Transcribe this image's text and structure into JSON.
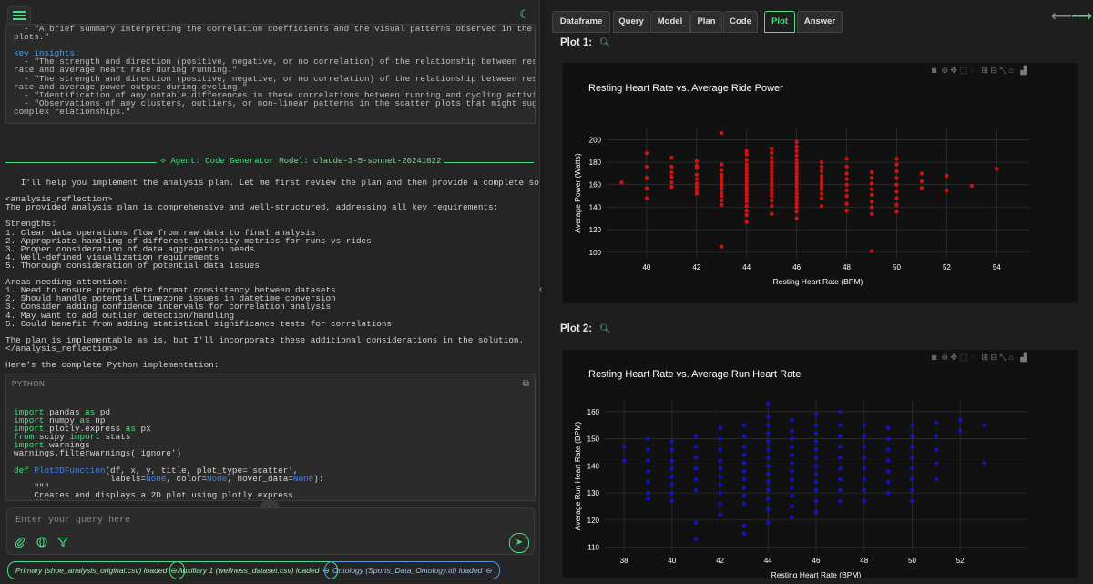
{
  "app": {
    "menu_icon": "hamburger-menu-icon",
    "theme_icon": "moon-icon"
  },
  "summary": {
    "lines": [
      "  - \"A brief summary interpreting the correlation coefficients and the visual patterns observed in the scatter",
      "plots.\"",
      "",
      "key_insights:",
      "  - \"The strength and direction (positive, negative, or no correlation) of the relationship between resting heart",
      "rate and average heart rate during running.\"",
      "  - \"The strength and direction (positive, negative, or no correlation) of the relationship between resting heart",
      "rate and average power output during cycling.\"",
      "  - \"Identification of any notable differences in these correlations between running and cycling activities.\"",
      "  - \"Observations of any clusters, outliers, or non-linear patterns in the scatter plots that might suggest more",
      "complex relationships.\""
    ]
  },
  "agent": {
    "label": "⟡ Agent: Code Generator",
    "model": "Model: claude-3-5-sonnet-20241022"
  },
  "message": {
    "lines": [
      "   I'll help you implement the analysis plan. Let me first review the plan and then provide a complete solution.",
      "",
      "<analysis_reflection>",
      "The provided analysis plan is comprehensive and well-structured, addressing all key requirements:",
      "",
      "Strengths:",
      "1. Clear data operations flow from raw data to final analysis",
      "2. Appropriate handling of different intensity metrics for runs vs rides",
      "3. Proper consideration of data aggregation needs",
      "4. Well-defined visualization requirements",
      "5. Thorough consideration of potential data issues",
      "",
      "Areas needing attention:",
      "1. Need to ensure proper date format consistency between datasets",
      "2. Should handle potential timezone issues in datetime conversion",
      "3. Consider adding confidence intervals for correlation analysis",
      "4. May want to add outlier detection/handling",
      "5. Could benefit from adding statistical significance tests for correlations",
      "",
      "The plan is implementable as is, but I'll incorporate these additional considerations in the solution.",
      "</analysis_reflection>",
      "",
      "Here's the complete Python implementation:"
    ]
  },
  "code": {
    "language": "PYTHON",
    "copy_icon": "copy-icon",
    "lines": [
      [
        [
          "kw",
          "import"
        ],
        [
          "t",
          " pandas "
        ],
        [
          "kw",
          "as"
        ],
        [
          "t",
          " pd"
        ]
      ],
      [
        [
          "kw",
          "import"
        ],
        [
          "t",
          " numpy "
        ],
        [
          "kw",
          "as"
        ],
        [
          "t",
          " np"
        ]
      ],
      [
        [
          "kw",
          "import"
        ],
        [
          "t",
          " plotly.express "
        ],
        [
          "kw",
          "as"
        ],
        [
          "t",
          " px"
        ]
      ],
      [
        [
          "kw",
          "from"
        ],
        [
          "t",
          " scipy "
        ],
        [
          "kw",
          "import"
        ],
        [
          "t",
          " stats"
        ]
      ],
      [
        [
          "kw",
          "import"
        ],
        [
          "t",
          " warnings"
        ]
      ],
      [
        [
          "t",
          "warnings.filterwarnings('ignore')"
        ]
      ],
      [
        [
          "t",
          ""
        ]
      ],
      [
        [
          "kw",
          "def"
        ],
        [
          "t",
          " "
        ],
        [
          "fn",
          "Plot2DFunction"
        ],
        [
          "t",
          "(df, x, y, title, plot_type='scatter',"
        ]
      ],
      [
        [
          "t",
          "                   labels="
        ],
        [
          "nn",
          "None"
        ],
        [
          "t",
          ", color="
        ],
        [
          "nn",
          "None"
        ],
        [
          "t",
          ", hover_data="
        ],
        [
          "nn",
          "None"
        ],
        [
          "t",
          "):"
        ]
      ],
      [
        [
          "t",
          "    \"\"\""
        ]
      ],
      [
        [
          "t",
          "    Creates and displays a 2D plot using plotly express"
        ]
      ],
      [
        [
          "t",
          "    \"\"\""
        ]
      ]
    ]
  },
  "query": {
    "placeholder": "Enter your query here",
    "attach_icon": "paperclip-icon",
    "globe_icon": "globe-icon",
    "filter_icon": "filter-icon",
    "send_icon": "send-icon",
    "scroll_icon": "arrow-down-icon"
  },
  "datasets": [
    {
      "label": "Primary (shoe_analysis_original.csv) loaded",
      "color": "#4ade80"
    },
    {
      "label": "Auxiliary 1 (wellness_dataset.csv) loaded",
      "color": "#4ade80"
    },
    {
      "label": "Ontology (Sports_Data_Ontology.ttl) loaded",
      "color": "#5b9bd5"
    }
  ],
  "tabs": [
    "Dataframe",
    "Query",
    "Model",
    "Plan",
    "Code",
    "Plot",
    "Answer"
  ],
  "active_tab": "Plot",
  "nav": {
    "back": "⟵",
    "forward": "⟶"
  },
  "plots": [
    {
      "label": "Plot 1:",
      "zoom_icon": "magnifier-icon"
    },
    {
      "label": "Plot 2:",
      "zoom_icon": "magnifier-icon"
    }
  ],
  "modebar_icons": [
    "camera-icon",
    "zoom-icon",
    "pan-icon",
    "box-select-icon",
    "lasso-icon",
    "zoom-in-icon",
    "zoom-out-icon",
    "autoscale-icon",
    "home-icon",
    "plotly-logo-icon"
  ],
  "chart_data": [
    {
      "type": "scatter",
      "title": "Resting Heart Rate vs. Average Ride Power",
      "xlabel": "Resting Heart Rate (BPM)",
      "ylabel": "Average Power (Watts)",
      "xlim": [
        38.4,
        55.3
      ],
      "ylim": [
        95,
        210
      ],
      "xticks": [
        40,
        42,
        44,
        46,
        48,
        50,
        52,
        54
      ],
      "yticks": [
        100,
        120,
        140,
        160,
        180,
        200
      ],
      "color": "#dd1111",
      "grid": true,
      "points": [
        [
          39,
          162
        ],
        [
          40,
          188
        ],
        [
          40,
          176
        ],
        [
          40,
          166
        ],
        [
          40,
          157
        ],
        [
          40,
          148
        ],
        [
          41,
          184
        ],
        [
          41,
          176
        ],
        [
          41,
          171
        ],
        [
          41,
          167
        ],
        [
          41,
          162
        ],
        [
          41,
          158
        ],
        [
          42,
          181
        ],
        [
          42,
          177
        ],
        [
          42,
          175
        ],
        [
          42,
          169
        ],
        [
          42,
          165
        ],
        [
          42,
          161
        ],
        [
          42,
          158
        ],
        [
          42,
          155
        ],
        [
          42,
          152
        ],
        [
          43,
          206
        ],
        [
          43,
          178
        ],
        [
          43,
          173
        ],
        [
          43,
          169
        ],
        [
          43,
          166
        ],
        [
          43,
          163
        ],
        [
          43,
          160
        ],
        [
          43,
          157
        ],
        [
          43,
          153
        ],
        [
          43,
          150
        ],
        [
          43,
          146
        ],
        [
          43,
          142
        ],
        [
          43,
          105
        ],
        [
          44,
          190
        ],
        [
          44,
          187
        ],
        [
          44,
          182
        ],
        [
          44,
          178
        ],
        [
          44,
          175
        ],
        [
          44,
          172
        ],
        [
          44,
          169
        ],
        [
          44,
          166
        ],
        [
          44,
          163
        ],
        [
          44,
          160
        ],
        [
          44,
          157
        ],
        [
          44,
          154
        ],
        [
          44,
          151
        ],
        [
          44,
          148
        ],
        [
          44,
          145
        ],
        [
          44,
          141
        ],
        [
          44,
          137
        ],
        [
          44,
          133
        ],
        [
          44,
          127
        ],
        [
          45,
          192
        ],
        [
          45,
          188
        ],
        [
          45,
          184
        ],
        [
          45,
          180
        ],
        [
          45,
          177
        ],
        [
          45,
          174
        ],
        [
          45,
          171
        ],
        [
          45,
          168
        ],
        [
          45,
          165
        ],
        [
          45,
          162
        ],
        [
          45,
          159
        ],
        [
          45,
          156
        ],
        [
          45,
          153
        ],
        [
          45,
          150
        ],
        [
          45,
          146
        ],
        [
          45,
          141
        ],
        [
          45,
          134
        ],
        [
          46,
          198
        ],
        [
          46,
          194
        ],
        [
          46,
          190
        ],
        [
          46,
          186
        ],
        [
          46,
          182
        ],
        [
          46,
          179
        ],
        [
          46,
          176
        ],
        [
          46,
          173
        ],
        [
          46,
          170
        ],
        [
          46,
          167
        ],
        [
          46,
          164
        ],
        [
          46,
          161
        ],
        [
          46,
          158
        ],
        [
          46,
          155
        ],
        [
          46,
          152
        ],
        [
          46,
          149
        ],
        [
          46,
          146
        ],
        [
          46,
          143
        ],
        [
          46,
          140
        ],
        [
          46,
          136
        ],
        [
          46,
          130
        ],
        [
          47,
          180
        ],
        [
          47,
          176
        ],
        [
          47,
          172
        ],
        [
          47,
          168
        ],
        [
          47,
          165
        ],
        [
          47,
          162
        ],
        [
          47,
          159
        ],
        [
          47,
          156
        ],
        [
          47,
          152
        ],
        [
          47,
          148
        ],
        [
          47,
          141
        ],
        [
          48,
          183
        ],
        [
          48,
          176
        ],
        [
          48,
          170
        ],
        [
          48,
          165
        ],
        [
          48,
          160
        ],
        [
          48,
          155
        ],
        [
          48,
          150
        ],
        [
          48,
          143
        ],
        [
          48,
          137
        ],
        [
          49,
          171
        ],
        [
          49,
          166
        ],
        [
          49,
          161
        ],
        [
          49,
          156
        ],
        [
          49,
          151
        ],
        [
          49,
          145
        ],
        [
          49,
          140
        ],
        [
          49,
          134
        ],
        [
          49,
          101
        ],
        [
          50,
          183
        ],
        [
          50,
          178
        ],
        [
          50,
          172
        ],
        [
          50,
          166
        ],
        [
          50,
          160
        ],
        [
          50,
          154
        ],
        [
          50,
          148
        ],
        [
          50,
          142
        ],
        [
          50,
          136
        ],
        [
          51,
          170
        ],
        [
          51,
          163
        ],
        [
          51,
          157
        ],
        [
          52,
          168
        ],
        [
          52,
          155
        ],
        [
          53,
          159
        ],
        [
          54,
          174
        ]
      ]
    },
    {
      "type": "scatter",
      "title": "Resting Heart Rate vs. Average Run Heart Rate",
      "xlabel": "Resting Heart Rate (BPM)",
      "ylabel": "Average Run Heart Rate (BPM)",
      "xlim": [
        37.2,
        54.8
      ],
      "ylim": [
        108.5,
        164
      ],
      "xticks": [
        38,
        40,
        42,
        44,
        46,
        48,
        50,
        52
      ],
      "yticks": [
        110,
        120,
        130,
        140,
        150,
        160
      ],
      "color": "#1414d8",
      "grid": true,
      "points": [
        [
          38,
          147
        ],
        [
          38,
          142
        ],
        [
          39,
          150
        ],
        [
          39,
          146
        ],
        [
          39,
          142
        ],
        [
          39,
          138
        ],
        [
          39,
          134
        ],
        [
          39,
          130
        ],
        [
          39,
          128
        ],
        [
          40,
          149
        ],
        [
          40,
          146
        ],
        [
          40,
          142
        ],
        [
          40,
          139
        ],
        [
          40,
          136
        ],
        [
          40,
          133
        ],
        [
          40,
          130
        ],
        [
          40,
          127
        ],
        [
          41,
          151
        ],
        [
          41,
          147
        ],
        [
          41,
          143
        ],
        [
          41,
          139
        ],
        [
          41,
          135
        ],
        [
          41,
          131
        ],
        [
          41,
          119
        ],
        [
          41,
          113
        ],
        [
          42,
          154
        ],
        [
          42,
          150
        ],
        [
          42,
          146
        ],
        [
          42,
          142
        ],
        [
          42,
          139
        ],
        [
          42,
          136
        ],
        [
          42,
          133
        ],
        [
          42,
          130
        ],
        [
          42,
          126
        ],
        [
          42,
          122
        ],
        [
          43,
          155
        ],
        [
          43,
          151
        ],
        [
          43,
          147
        ],
        [
          43,
          144
        ],
        [
          43,
          141
        ],
        [
          43,
          138
        ],
        [
          43,
          135
        ],
        [
          43,
          132
        ],
        [
          43,
          129
        ],
        [
          43,
          126
        ],
        [
          43,
          118
        ],
        [
          43,
          115
        ],
        [
          44,
          163
        ],
        [
          44,
          158
        ],
        [
          44,
          155
        ],
        [
          44,
          152
        ],
        [
          44,
          149
        ],
        [
          44,
          146
        ],
        [
          44,
          143
        ],
        [
          44,
          140
        ],
        [
          44,
          137
        ],
        [
          44,
          134
        ],
        [
          44,
          131
        ],
        [
          44,
          128
        ],
        [
          44,
          124
        ],
        [
          44,
          119
        ],
        [
          45,
          157
        ],
        [
          45,
          153
        ],
        [
          45,
          150
        ],
        [
          45,
          147
        ],
        [
          45,
          144
        ],
        [
          45,
          141
        ],
        [
          45,
          138
        ],
        [
          45,
          135
        ],
        [
          45,
          132
        ],
        [
          45,
          129
        ],
        [
          45,
          125
        ],
        [
          45,
          121
        ],
        [
          46,
          159
        ],
        [
          46,
          155
        ],
        [
          46,
          152
        ],
        [
          46,
          149
        ],
        [
          46,
          146
        ],
        [
          46,
          143
        ],
        [
          46,
          140
        ],
        [
          46,
          137
        ],
        [
          46,
          134
        ],
        [
          46,
          131
        ],
        [
          46,
          127
        ],
        [
          46,
          123
        ],
        [
          47,
          160
        ],
        [
          47,
          155
        ],
        [
          47,
          151
        ],
        [
          47,
          147
        ],
        [
          47,
          143
        ],
        [
          47,
          139
        ],
        [
          47,
          135
        ],
        [
          47,
          131
        ],
        [
          47,
          127
        ],
        [
          48,
          155
        ],
        [
          48,
          151
        ],
        [
          48,
          147
        ],
        [
          48,
          143
        ],
        [
          48,
          139
        ],
        [
          48,
          135
        ],
        [
          48,
          131
        ],
        [
          48,
          127
        ],
        [
          49,
          154
        ],
        [
          49,
          150
        ],
        [
          49,
          146
        ],
        [
          49,
          142
        ],
        [
          49,
          138
        ],
        [
          49,
          134
        ],
        [
          49,
          130
        ],
        [
          50,
          155
        ],
        [
          50,
          151
        ],
        [
          50,
          147
        ],
        [
          50,
          143
        ],
        [
          50,
          139
        ],
        [
          50,
          135
        ],
        [
          50,
          131
        ],
        [
          50,
          127
        ],
        [
          51,
          156
        ],
        [
          51,
          151
        ],
        [
          51,
          146
        ],
        [
          51,
          141
        ],
        [
          51,
          135
        ],
        [
          52,
          157
        ],
        [
          52,
          153
        ],
        [
          53,
          155
        ],
        [
          53,
          141
        ]
      ]
    }
  ]
}
